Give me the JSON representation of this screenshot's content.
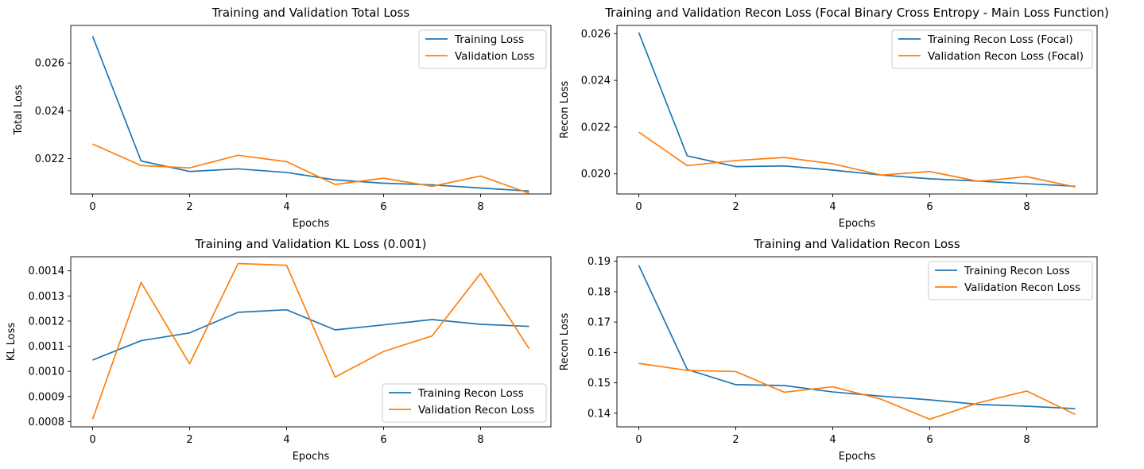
{
  "figure": {
    "colors": {
      "series_1": "#1f77b4",
      "series_2": "#ff7f0e"
    }
  },
  "chart_data": [
    {
      "type": "line",
      "title": "Training and Validation Total Loss",
      "xlabel": "Epochs",
      "ylabel": "Total Loss",
      "x": [
        0,
        1,
        2,
        3,
        4,
        5,
        6,
        7,
        8,
        9
      ],
      "xlim": [
        -0.45,
        9.45
      ],
      "ylim": [
        0.02052,
        0.02757
      ],
      "xticks": [
        0,
        2,
        4,
        6,
        8
      ],
      "xtick_labels": [
        "0",
        "2",
        "4",
        "6",
        "8"
      ],
      "yticks": [
        0.022,
        0.024,
        0.026
      ],
      "ytick_labels": [
        "0.022",
        "0.024",
        "0.026"
      ],
      "legend_loc": "upper right",
      "grid": false,
      "series": [
        {
          "name": "Training Loss",
          "values": [
            0.02712,
            0.0219,
            0.02146,
            0.02157,
            0.02142,
            0.02111,
            0.02097,
            0.0209,
            0.02077,
            0.02064
          ]
        },
        {
          "name": "Validation Loss",
          "values": [
            0.02261,
            0.02171,
            0.02161,
            0.02214,
            0.02187,
            0.02092,
            0.02118,
            0.02084,
            0.02127,
            0.02055
          ]
        }
      ]
    },
    {
      "type": "line",
      "title": "Training and Validation Recon Loss (Focal Binary Cross Entropy - Main Loss Function)",
      "xlabel": "Epochs",
      "ylabel": "Recon Loss",
      "x": [
        0,
        1,
        2,
        3,
        4,
        5,
        6,
        7,
        8,
        9
      ],
      "xlim": [
        -0.45,
        9.45
      ],
      "ylim": [
        0.01914,
        0.02635
      ],
      "xticks": [
        0,
        2,
        4,
        6,
        8
      ],
      "xtick_labels": [
        "0",
        "2",
        "4",
        "6",
        "8"
      ],
      "yticks": [
        0.02,
        0.022,
        0.024,
        0.026
      ],
      "ytick_labels": [
        "0.020",
        "0.022",
        "0.024",
        "0.026"
      ],
      "legend_loc": "upper right",
      "grid": false,
      "series": [
        {
          "name": "Training Recon Loss (Focal)",
          "values": [
            0.02605,
            0.02077,
            0.02031,
            0.02034,
            0.02016,
            0.01995,
            0.01979,
            0.01969,
            0.01958,
            0.01947
          ]
        },
        {
          "name": "Validation Recon Loss (Focal)",
          "values": [
            0.02179,
            0.02035,
            0.02057,
            0.0207,
            0.02043,
            0.01995,
            0.0201,
            0.01968,
            0.01988,
            0.01944
          ]
        }
      ]
    },
    {
      "type": "line",
      "title": "Training and Validation KL Loss (0.001)",
      "xlabel": "Epochs",
      "ylabel": "KL Loss",
      "x": [
        0,
        1,
        2,
        3,
        4,
        5,
        6,
        7,
        8,
        9
      ],
      "xlim": [
        -0.45,
        9.45
      ],
      "ylim": [
        0.000779,
        0.001456
      ],
      "xticks": [
        0,
        2,
        4,
        6,
        8
      ],
      "xtick_labels": [
        "0",
        "2",
        "4",
        "6",
        "8"
      ],
      "yticks": [
        0.0008,
        0.0009,
        0.001,
        0.0011,
        0.0012,
        0.0013,
        0.0014
      ],
      "ytick_labels": [
        "0.0008",
        "0.0009",
        "0.0010",
        "0.0011",
        "0.0012",
        "0.0013",
        "0.0014"
      ],
      "legend_loc": "lower right",
      "grid": false,
      "series": [
        {
          "name": "Training Recon Loss",
          "values": [
            0.001045,
            0.001122,
            0.001153,
            0.001235,
            0.001245,
            0.001165,
            0.001185,
            0.001206,
            0.001187,
            0.001179
          ]
        },
        {
          "name": "Validation Recon Loss",
          "values": [
            0.000809,
            0.001354,
            0.00103,
            0.001429,
            0.001422,
            0.000977,
            0.001079,
            0.001141,
            0.00139,
            0.00109
          ]
        }
      ]
    },
    {
      "type": "line",
      "title": "Training and Validation Recon Loss",
      "xlabel": "Epochs",
      "ylabel": "Recon Loss",
      "x": [
        0,
        1,
        2,
        3,
        4,
        5,
        6,
        7,
        8,
        9
      ],
      "xlim": [
        -0.45,
        9.45
      ],
      "ylim": [
        0.1355,
        0.1915
      ],
      "xticks": [
        0,
        2,
        4,
        6,
        8
      ],
      "xtick_labels": [
        "0",
        "2",
        "4",
        "6",
        "8"
      ],
      "yticks": [
        0.14,
        0.15,
        0.16,
        0.17,
        0.18,
        0.19
      ],
      "ytick_labels": [
        "0.14",
        "0.15",
        "0.16",
        "0.17",
        "0.18",
        "0.19"
      ],
      "legend_loc": "upper right",
      "grid": false,
      "series": [
        {
          "name": "Training Recon Loss",
          "values": [
            0.1887,
            0.1544,
            0.1494,
            0.1491,
            0.147,
            0.1456,
            0.1444,
            0.1429,
            0.1423,
            0.1415
          ]
        },
        {
          "name": "Validation Recon Loss",
          "values": [
            0.1564,
            0.1541,
            0.1537,
            0.1469,
            0.1487,
            0.1446,
            0.138,
            0.1434,
            0.1473,
            0.1396
          ]
        }
      ]
    }
  ]
}
